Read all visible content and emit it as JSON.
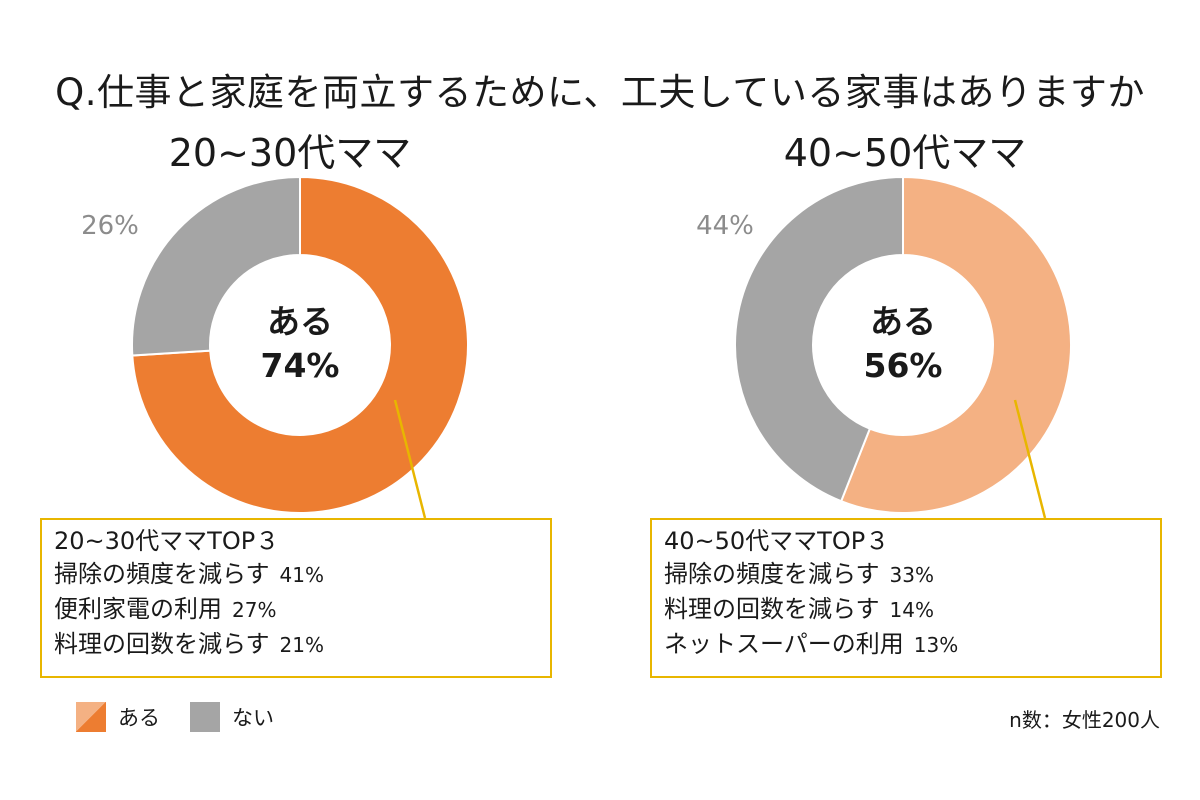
{
  "question": "Q.仕事と家庭を両立するために、工夫している家事はありますか",
  "chart_data": [
    {
      "type": "pie",
      "title": "20~30代ママ",
      "categories": [
        "ある",
        "ない"
      ],
      "values": [
        74,
        26
      ],
      "labels": [
        "74%",
        "26%"
      ],
      "center_label": "ある",
      "center_value": "74%",
      "colors": [
        "#ed7d31",
        "#a5a5a5"
      ]
    },
    {
      "type": "pie",
      "title": "40~50代ママ",
      "categories": [
        "ある",
        "ない"
      ],
      "values": [
        56,
        44
      ],
      "labels": [
        "56%",
        "44%"
      ],
      "center_label": "ある",
      "center_value": "56%",
      "colors": [
        "#f4b183",
        "#a5a5a5"
      ]
    }
  ],
  "top3": [
    {
      "heading": "20~30代ママTOP３",
      "items": [
        {
          "label": "掃除の頻度を減らす",
          "value": "41%"
        },
        {
          "label": "便利家電の利用",
          "value": "27%"
        },
        {
          "label": "料理の回数を減らす",
          "value": "21%"
        }
      ]
    },
    {
      "heading": "40~50代ママTOP３",
      "items": [
        {
          "label": "掃除の頻度を減らす",
          "value": "33%"
        },
        {
          "label": "料理の回数を減らす",
          "value": "14%"
        },
        {
          "label": "ネットスーパーの利用",
          "value": "13%"
        }
      ]
    }
  ],
  "legend": {
    "items": [
      {
        "label": "ある",
        "color_a": "#ed7d31",
        "color_b": "#f4b183"
      },
      {
        "label": "ない",
        "color": "#a5a5a5"
      }
    ]
  },
  "note": "n数：女性200人"
}
